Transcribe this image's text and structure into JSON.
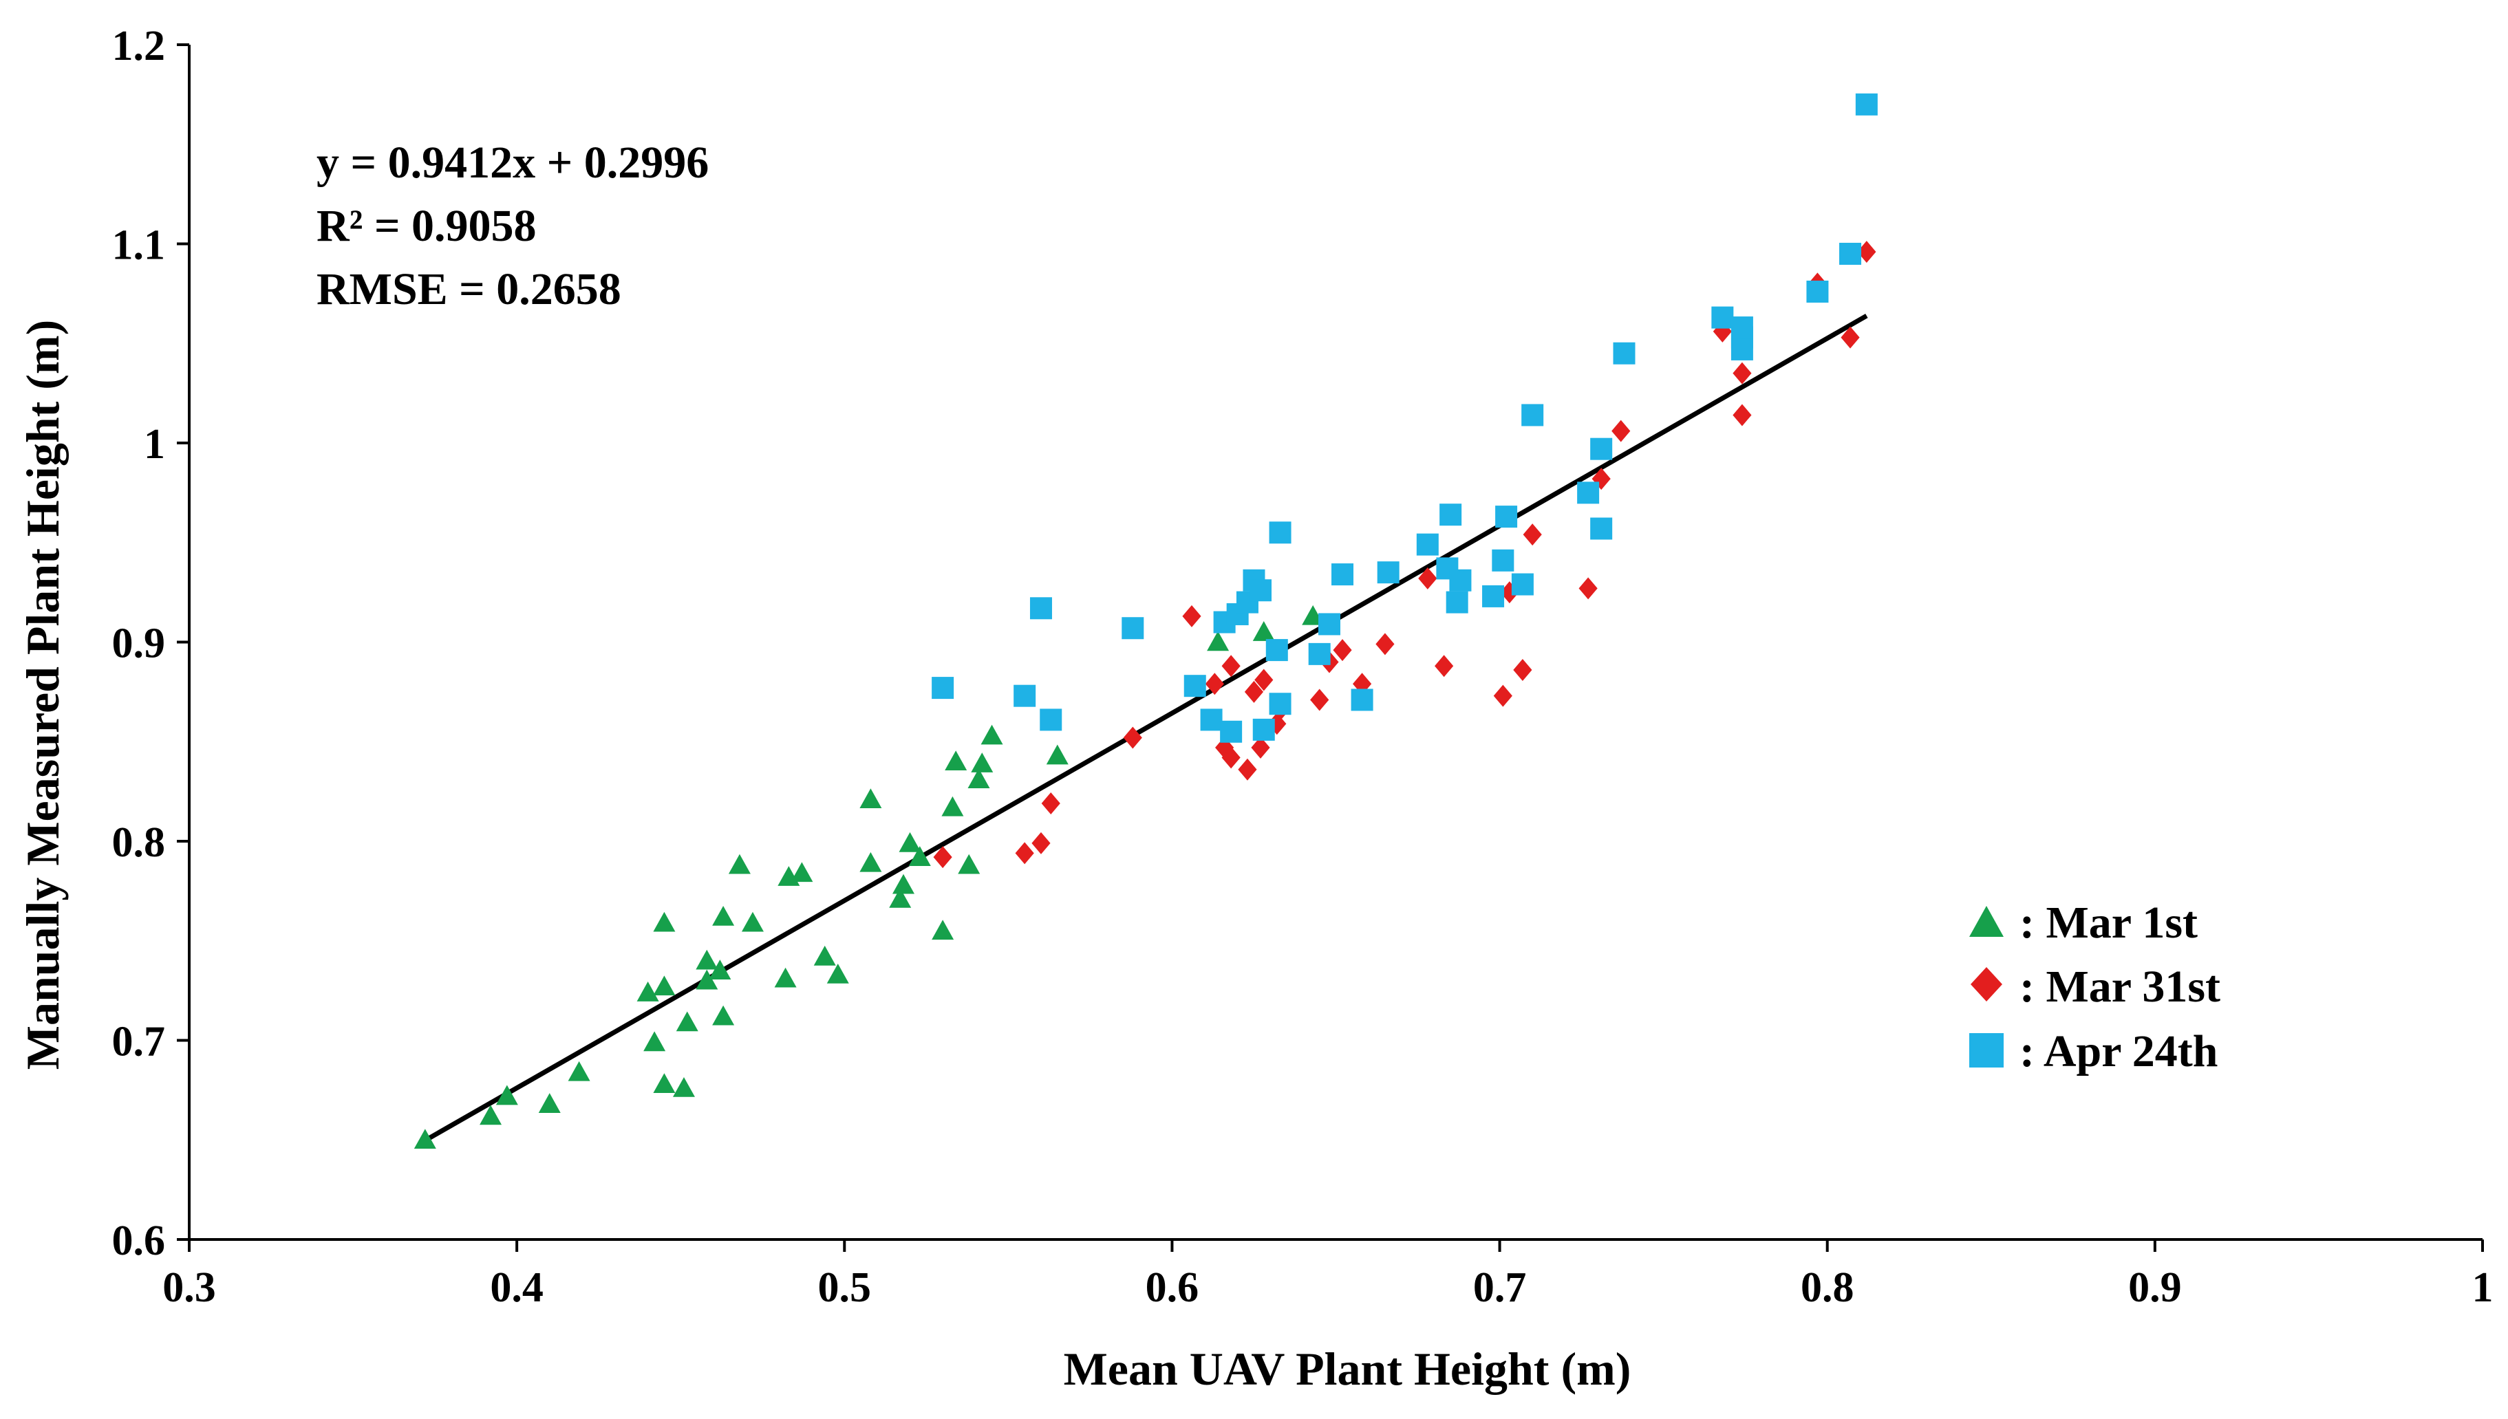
{
  "chart_data": {
    "type": "scatter",
    "xlabel": "Mean UAV Plant Height (m)",
    "ylabel": "Manually Measured Plant Height (m)",
    "xlim": [
      0.3,
      1.0
    ],
    "ylim": [
      0.6,
      1.2
    ],
    "x_ticks": [
      "0.3",
      "0.4",
      "0.5",
      "0.6",
      "0.7",
      "0.8",
      "0.9",
      "1"
    ],
    "y_ticks": [
      "0.6",
      "0.7",
      "0.8",
      "0.9",
      "1",
      "1.1",
      "1.2"
    ],
    "grid": false,
    "legend_position": "bottom-right",
    "annotations": {
      "equation": "y = 0.9412x + 0.2996",
      "r2": "R² = 0.9058",
      "rmse": "RMSE = 0.2658"
    },
    "trendline": {
      "slope": 0.9412,
      "intercept": 0.2996,
      "x_range": [
        0.372,
        0.812
      ],
      "color": "#000000"
    },
    "series": [
      {
        "name": ": Mar 1st",
        "marker": "triangle",
        "color": "#16A04B",
        "points": [
          [
            0.372,
            0.65
          ],
          [
            0.392,
            0.662
          ],
          [
            0.397,
            0.672
          ],
          [
            0.41,
            0.668
          ],
          [
            0.419,
            0.684
          ],
          [
            0.44,
            0.724
          ],
          [
            0.442,
            0.699
          ],
          [
            0.445,
            0.678
          ],
          [
            0.445,
            0.727
          ],
          [
            0.445,
            0.759
          ],
          [
            0.451,
            0.676
          ],
          [
            0.452,
            0.709
          ],
          [
            0.458,
            0.73
          ],
          [
            0.458,
            0.74
          ],
          [
            0.462,
            0.735
          ],
          [
            0.463,
            0.712
          ],
          [
            0.463,
            0.762
          ],
          [
            0.468,
            0.788
          ],
          [
            0.472,
            0.759
          ],
          [
            0.482,
            0.731
          ],
          [
            0.483,
            0.782
          ],
          [
            0.487,
            0.784
          ],
          [
            0.494,
            0.742
          ],
          [
            0.498,
            0.733
          ],
          [
            0.508,
            0.789
          ],
          [
            0.508,
            0.821
          ],
          [
            0.517,
            0.771
          ],
          [
            0.518,
            0.778
          ],
          [
            0.52,
            0.799
          ],
          [
            0.523,
            0.792
          ],
          [
            0.53,
            0.755
          ],
          [
            0.533,
            0.817
          ],
          [
            0.534,
            0.84
          ],
          [
            0.538,
            0.788
          ],
          [
            0.541,
            0.831
          ],
          [
            0.542,
            0.839
          ],
          [
            0.545,
            0.853
          ],
          [
            0.565,
            0.843
          ],
          [
            0.614,
            0.9
          ],
          [
            0.628,
            0.905
          ],
          [
            0.643,
            0.913
          ]
        ]
      },
      {
        "name": ": Mar 31st",
        "marker": "diamond",
        "color": "#E31E1E",
        "points": [
          [
            0.53,
            0.792
          ],
          [
            0.555,
            0.794
          ],
          [
            0.56,
            0.799
          ],
          [
            0.563,
            0.819
          ],
          [
            0.588,
            0.852
          ],
          [
            0.606,
            0.913
          ],
          [
            0.613,
            0.879
          ],
          [
            0.616,
            0.847
          ],
          [
            0.618,
            0.842
          ],
          [
            0.618,
            0.888
          ],
          [
            0.623,
            0.836
          ],
          [
            0.625,
            0.875
          ],
          [
            0.627,
            0.847
          ],
          [
            0.628,
            0.881
          ],
          [
            0.632,
            0.859
          ],
          [
            0.633,
            0.866
          ],
          [
            0.645,
            0.871
          ],
          [
            0.648,
            0.89
          ],
          [
            0.652,
            0.896
          ],
          [
            0.658,
            0.879
          ],
          [
            0.665,
            0.899
          ],
          [
            0.678,
            0.932
          ],
          [
            0.683,
            0.888
          ],
          [
            0.701,
            0.873
          ],
          [
            0.703,
            0.925
          ],
          [
            0.707,
            0.886
          ],
          [
            0.71,
            0.954
          ],
          [
            0.727,
            0.927
          ],
          [
            0.731,
            0.982
          ],
          [
            0.737,
            1.006
          ],
          [
            0.768,
            1.056
          ],
          [
            0.774,
            1.014
          ],
          [
            0.774,
            1.035
          ],
          [
            0.797,
            1.08
          ],
          [
            0.807,
            1.053
          ],
          [
            0.812,
            1.096
          ]
        ]
      },
      {
        "name": ": Apr 24th",
        "marker": "square",
        "color": "#1FB2E6",
        "points": [
          [
            0.53,
            0.877
          ],
          [
            0.555,
            0.873
          ],
          [
            0.56,
            0.917
          ],
          [
            0.563,
            0.861
          ],
          [
            0.588,
            0.907
          ],
          [
            0.607,
            0.878
          ],
          [
            0.612,
            0.861
          ],
          [
            0.616,
            0.91
          ],
          [
            0.618,
            0.855
          ],
          [
            0.62,
            0.914
          ],
          [
            0.623,
            0.92
          ],
          [
            0.625,
            0.931
          ],
          [
            0.627,
            0.926
          ],
          [
            0.628,
            0.856
          ],
          [
            0.632,
            0.896
          ],
          [
            0.633,
            0.869
          ],
          [
            0.633,
            0.955
          ],
          [
            0.645,
            0.894
          ],
          [
            0.648,
            0.909
          ],
          [
            0.652,
            0.934
          ],
          [
            0.658,
            0.871
          ],
          [
            0.666,
            0.935
          ],
          [
            0.678,
            0.949
          ],
          [
            0.684,
            0.937
          ],
          [
            0.685,
            0.964
          ],
          [
            0.687,
            0.92
          ],
          [
            0.688,
            0.931
          ],
          [
            0.698,
            0.923
          ],
          [
            0.701,
            0.941
          ],
          [
            0.702,
            0.963
          ],
          [
            0.707,
            0.929
          ],
          [
            0.71,
            1.014
          ],
          [
            0.727,
            0.975
          ],
          [
            0.731,
            0.957
          ],
          [
            0.731,
            0.997
          ],
          [
            0.738,
            1.045
          ],
          [
            0.768,
            1.063
          ],
          [
            0.774,
            1.047
          ],
          [
            0.774,
            1.053
          ],
          [
            0.774,
            1.058
          ],
          [
            0.797,
            1.076
          ],
          [
            0.807,
            1.095
          ],
          [
            0.812,
            1.17
          ]
        ]
      }
    ]
  }
}
